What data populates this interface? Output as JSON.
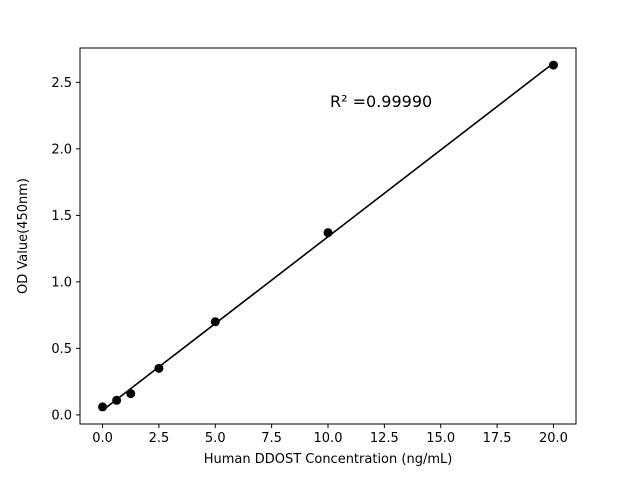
{
  "chart_data": {
    "type": "scatter",
    "title": "",
    "xlabel": "Human DDOST Concentration (ng/mL)",
    "ylabel": "OD Value(450nm)",
    "annotation": "R² =0.99990",
    "x": [
      0,
      0.625,
      1.25,
      2.5,
      5,
      10,
      20
    ],
    "y": [
      0.06,
      0.11,
      0.16,
      0.35,
      0.7,
      1.37,
      2.63
    ],
    "xticks": [
      0.0,
      2.5,
      5.0,
      7.5,
      10.0,
      12.5,
      15.0,
      17.5,
      20.0
    ],
    "xtick_labels": [
      "0.0",
      "2.5",
      "5.0",
      "7.5",
      "10.0",
      "12.5",
      "15.0",
      "17.5",
      "20.0"
    ],
    "yticks": [
      0.0,
      0.5,
      1.0,
      1.5,
      2.0,
      2.5
    ],
    "ytick_labels": [
      "0.0",
      "0.5",
      "1.0",
      "1.5",
      "2.0",
      "2.5"
    ],
    "xlim": [
      -1.0,
      21.0
    ],
    "ylim": [
      -0.0685,
      2.7585
    ],
    "grid": false,
    "legend": "none",
    "line": true,
    "line_color": "#000000",
    "marker_color": "#000000",
    "background_color": "#ffffff"
  }
}
